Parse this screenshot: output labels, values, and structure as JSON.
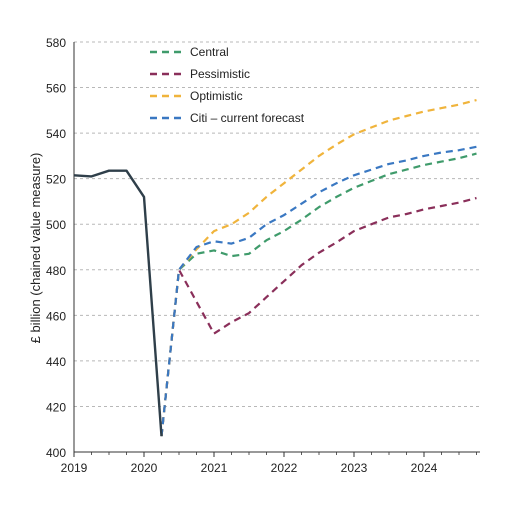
{
  "chart_data": {
    "type": "line",
    "title": "",
    "xlabel": "",
    "ylabel": "£ billion (chained value measure)",
    "xlim": [
      2019,
      2024.8
    ],
    "ylim": [
      400,
      580
    ],
    "yticks": [
      400,
      420,
      440,
      460,
      480,
      500,
      520,
      540,
      560,
      580
    ],
    "xticks": [
      2019,
      2020,
      2021,
      2022,
      2023,
      2024
    ],
    "grid": "horizontal dashed",
    "legend_position": "top-center",
    "history": {
      "color": "#2f3f4a",
      "points": [
        [
          2019.0,
          521.5
        ],
        [
          2019.25,
          521.0
        ],
        [
          2019.5,
          523.5
        ],
        [
          2019.75,
          523.5
        ],
        [
          2020.0,
          512.0
        ],
        [
          2020.25,
          407.0
        ]
      ]
    },
    "series": [
      {
        "name": "Central",
        "color": "#3f9b6b",
        "points": [
          [
            2020.25,
            407
          ],
          [
            2020.5,
            480
          ],
          [
            2020.75,
            487
          ],
          [
            2021.0,
            488.5
          ],
          [
            2021.25,
            486
          ],
          [
            2021.5,
            487
          ],
          [
            2021.75,
            493
          ],
          [
            2022.0,
            497
          ],
          [
            2022.25,
            502
          ],
          [
            2022.5,
            507.5
          ],
          [
            2022.75,
            512
          ],
          [
            2023.0,
            516
          ],
          [
            2023.25,
            519
          ],
          [
            2023.5,
            522
          ],
          [
            2023.75,
            524
          ],
          [
            2024.0,
            526
          ],
          [
            2024.25,
            527.5
          ],
          [
            2024.5,
            529
          ],
          [
            2024.75,
            531
          ]
        ]
      },
      {
        "name": "Pessimistic",
        "color": "#8a2f5a",
        "points": [
          [
            2020.25,
            407
          ],
          [
            2020.5,
            480
          ],
          [
            2020.75,
            466
          ],
          [
            2021.0,
            452
          ],
          [
            2021.25,
            457
          ],
          [
            2021.5,
            461
          ],
          [
            2021.75,
            468
          ],
          [
            2022.0,
            475
          ],
          [
            2022.25,
            482
          ],
          [
            2022.5,
            487.5
          ],
          [
            2022.75,
            492
          ],
          [
            2023.0,
            497
          ],
          [
            2023.25,
            500
          ],
          [
            2023.5,
            503
          ],
          [
            2023.75,
            504.5
          ],
          [
            2024.0,
            506.5
          ],
          [
            2024.25,
            508
          ],
          [
            2024.5,
            509.5
          ],
          [
            2024.75,
            511.5
          ]
        ]
      },
      {
        "name": "Optimistic",
        "color": "#f0b43c",
        "points": [
          [
            2020.25,
            407
          ],
          [
            2020.5,
            480
          ],
          [
            2020.75,
            489
          ],
          [
            2021.0,
            497
          ],
          [
            2021.25,
            500
          ],
          [
            2021.5,
            505
          ],
          [
            2021.75,
            512
          ],
          [
            2022.0,
            518
          ],
          [
            2022.25,
            524
          ],
          [
            2022.5,
            530
          ],
          [
            2022.75,
            535
          ],
          [
            2023.0,
            539.5
          ],
          [
            2023.25,
            542.5
          ],
          [
            2023.5,
            545.5
          ],
          [
            2023.75,
            547.5
          ],
          [
            2024.0,
            549.5
          ],
          [
            2024.25,
            551
          ],
          [
            2024.5,
            552.5
          ],
          [
            2024.75,
            554.5
          ]
        ]
      },
      {
        "name": "Citi – current forecast",
        "color": "#3a78c2",
        "points": [
          [
            2020.25,
            407
          ],
          [
            2020.5,
            480
          ],
          [
            2020.75,
            490
          ],
          [
            2021.0,
            492.5
          ],
          [
            2021.25,
            491.5
          ],
          [
            2021.5,
            494
          ],
          [
            2021.75,
            500
          ],
          [
            2022.0,
            504
          ],
          [
            2022.25,
            509
          ],
          [
            2022.5,
            514
          ],
          [
            2022.75,
            518
          ],
          [
            2023.0,
            521.5
          ],
          [
            2023.25,
            524
          ],
          [
            2023.5,
            526.5
          ],
          [
            2023.75,
            528
          ],
          [
            2024.0,
            530
          ],
          [
            2024.25,
            531.5
          ],
          [
            2024.5,
            532.5
          ],
          [
            2024.75,
            534
          ]
        ]
      }
    ]
  }
}
